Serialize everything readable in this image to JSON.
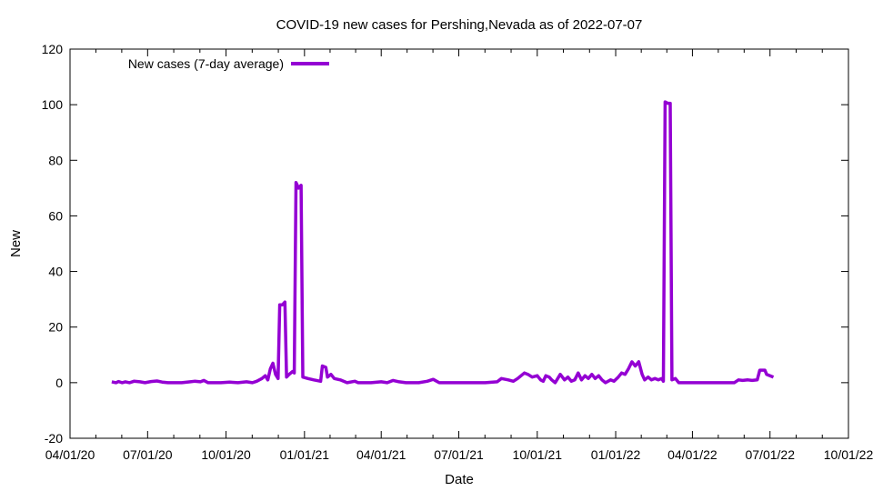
{
  "chart_data": {
    "type": "line",
    "title": "COVID-19 new cases for Pershing,Nevada as of 2022-07-07",
    "xlabel": "Date",
    "ylabel": "New",
    "xlim": [
      "2020-04-01",
      "2022-10-01"
    ],
    "ylim": [
      -20,
      120
    ],
    "x_ticks": [
      "04/01/20",
      "07/01/20",
      "10/01/20",
      "01/01/21",
      "04/01/21",
      "07/01/21",
      "10/01/21",
      "01/01/22",
      "04/01/22",
      "07/01/22",
      "10/01/22"
    ],
    "y_ticks": [
      -20,
      0,
      20,
      40,
      60,
      80,
      100,
      120
    ],
    "grid": false,
    "legend_position": "top-left",
    "colors": {
      "series": "#9400d3"
    },
    "series": [
      {
        "name": "New cases (7-day average)",
        "points": [
          [
            "2020-05-20",
            0.3
          ],
          [
            "2020-05-25",
            0
          ],
          [
            "2020-05-28",
            0.4
          ],
          [
            "2020-06-01",
            0
          ],
          [
            "2020-06-05",
            0.3
          ],
          [
            "2020-06-10",
            0
          ],
          [
            "2020-06-15",
            0.5
          ],
          [
            "2020-06-22",
            0.3
          ],
          [
            "2020-06-28",
            0
          ],
          [
            "2020-07-05",
            0.4
          ],
          [
            "2020-07-12",
            0.6
          ],
          [
            "2020-07-18",
            0.2
          ],
          [
            "2020-07-25",
            0
          ],
          [
            "2020-08-10",
            0
          ],
          [
            "2020-08-20",
            0.3
          ],
          [
            "2020-08-25",
            0.5
          ],
          [
            "2020-09-01",
            0.3
          ],
          [
            "2020-09-05",
            0.8
          ],
          [
            "2020-09-10",
            0
          ],
          [
            "2020-09-25",
            0
          ],
          [
            "2020-10-05",
            0.2
          ],
          [
            "2020-10-15",
            0
          ],
          [
            "2020-10-25",
            0.3
          ],
          [
            "2020-11-01",
            0
          ],
          [
            "2020-11-06",
            0.5
          ],
          [
            "2020-11-12",
            1.5
          ],
          [
            "2020-11-16",
            2.5
          ],
          [
            "2020-11-19",
            1.0
          ],
          [
            "2020-11-22",
            5
          ],
          [
            "2020-11-25",
            7
          ],
          [
            "2020-11-28",
            3
          ],
          [
            "2020-12-01",
            1.5
          ],
          [
            "2020-12-03",
            28
          ],
          [
            "2020-12-06",
            28
          ],
          [
            "2020-12-09",
            29
          ],
          [
            "2020-12-11",
            2
          ],
          [
            "2020-12-14",
            3
          ],
          [
            "2020-12-18",
            4
          ],
          [
            "2020-12-20",
            3.5
          ],
          [
            "2020-12-22",
            72
          ],
          [
            "2020-12-25",
            70
          ],
          [
            "2020-12-28",
            71
          ],
          [
            "2020-12-30",
            2
          ],
          [
            "2021-01-05",
            1.5
          ],
          [
            "2021-01-12",
            1
          ],
          [
            "2021-01-20",
            0.5
          ],
          [
            "2021-01-22",
            6
          ],
          [
            "2021-01-26",
            5.5
          ],
          [
            "2021-01-28",
            2
          ],
          [
            "2021-02-01",
            3
          ],
          [
            "2021-02-05",
            1.5
          ],
          [
            "2021-02-12",
            1
          ],
          [
            "2021-02-20",
            0
          ],
          [
            "2021-03-01",
            0.5
          ],
          [
            "2021-03-05",
            0
          ],
          [
            "2021-03-20",
            0
          ],
          [
            "2021-04-01",
            0.3
          ],
          [
            "2021-04-08",
            0
          ],
          [
            "2021-04-15",
            0.8
          ],
          [
            "2021-04-22",
            0.3
          ],
          [
            "2021-04-30",
            0
          ],
          [
            "2021-05-15",
            0
          ],
          [
            "2021-05-25",
            0.5
          ],
          [
            "2021-06-01",
            1.2
          ],
          [
            "2021-06-08",
            0
          ],
          [
            "2021-06-20",
            0
          ],
          [
            "2021-07-01",
            0
          ],
          [
            "2021-07-15",
            0
          ],
          [
            "2021-08-01",
            0
          ],
          [
            "2021-08-15",
            0.3
          ],
          [
            "2021-08-20",
            1.5
          ],
          [
            "2021-08-28",
            1
          ],
          [
            "2021-09-03",
            0.5
          ],
          [
            "2021-09-08",
            1.5
          ],
          [
            "2021-09-12",
            2.5
          ],
          [
            "2021-09-16",
            3.5
          ],
          [
            "2021-09-20",
            3
          ],
          [
            "2021-09-25",
            2
          ],
          [
            "2021-10-01",
            2.5
          ],
          [
            "2021-10-05",
            1
          ],
          [
            "2021-10-08",
            0.5
          ],
          [
            "2021-10-11",
            2.5
          ],
          [
            "2021-10-15",
            2
          ],
          [
            "2021-10-18",
            1
          ],
          [
            "2021-10-22",
            0
          ],
          [
            "2021-10-25",
            1.5
          ],
          [
            "2021-10-28",
            3
          ],
          [
            "2021-11-02",
            1
          ],
          [
            "2021-11-06",
            2
          ],
          [
            "2021-11-10",
            0.5
          ],
          [
            "2021-11-14",
            1
          ],
          [
            "2021-11-18",
            3.5
          ],
          [
            "2021-11-22",
            1
          ],
          [
            "2021-11-26",
            2.5
          ],
          [
            "2021-11-30",
            1.5
          ],
          [
            "2021-12-04",
            3
          ],
          [
            "2021-12-08",
            1.5
          ],
          [
            "2021-12-12",
            2.5
          ],
          [
            "2021-12-16",
            1
          ],
          [
            "2021-12-20",
            0
          ],
          [
            "2021-12-26",
            1
          ],
          [
            "2021-12-30",
            0.5
          ],
          [
            "2022-01-04",
            2
          ],
          [
            "2022-01-08",
            3.5
          ],
          [
            "2022-01-12",
            3
          ],
          [
            "2022-01-16",
            5
          ],
          [
            "2022-01-20",
            7.5
          ],
          [
            "2022-01-24",
            6
          ],
          [
            "2022-01-28",
            7.5
          ],
          [
            "2022-02-01",
            3
          ],
          [
            "2022-02-04",
            1
          ],
          [
            "2022-02-08",
            2
          ],
          [
            "2022-02-12",
            1
          ],
          [
            "2022-02-16",
            1.5
          ],
          [
            "2022-02-20",
            1
          ],
          [
            "2022-02-24",
            1.5
          ],
          [
            "2022-02-26",
            0.5
          ],
          [
            "2022-02-28",
            101
          ],
          [
            "2022-03-03",
            100.5
          ],
          [
            "2022-03-06",
            100.5
          ],
          [
            "2022-03-08",
            1
          ],
          [
            "2022-03-12",
            1.5
          ],
          [
            "2022-03-16",
            0
          ],
          [
            "2022-04-01",
            0
          ],
          [
            "2022-04-20",
            0
          ],
          [
            "2022-05-10",
            0
          ],
          [
            "2022-05-20",
            0
          ],
          [
            "2022-05-25",
            1
          ],
          [
            "2022-05-30",
            0.8
          ],
          [
            "2022-06-05",
            1
          ],
          [
            "2022-06-10",
            0.8
          ],
          [
            "2022-06-16",
            1
          ],
          [
            "2022-06-19",
            4.5
          ],
          [
            "2022-06-25",
            4.5
          ],
          [
            "2022-06-27",
            3
          ],
          [
            "2022-07-01",
            2.5
          ],
          [
            "2022-07-05",
            2
          ]
        ]
      }
    ]
  }
}
